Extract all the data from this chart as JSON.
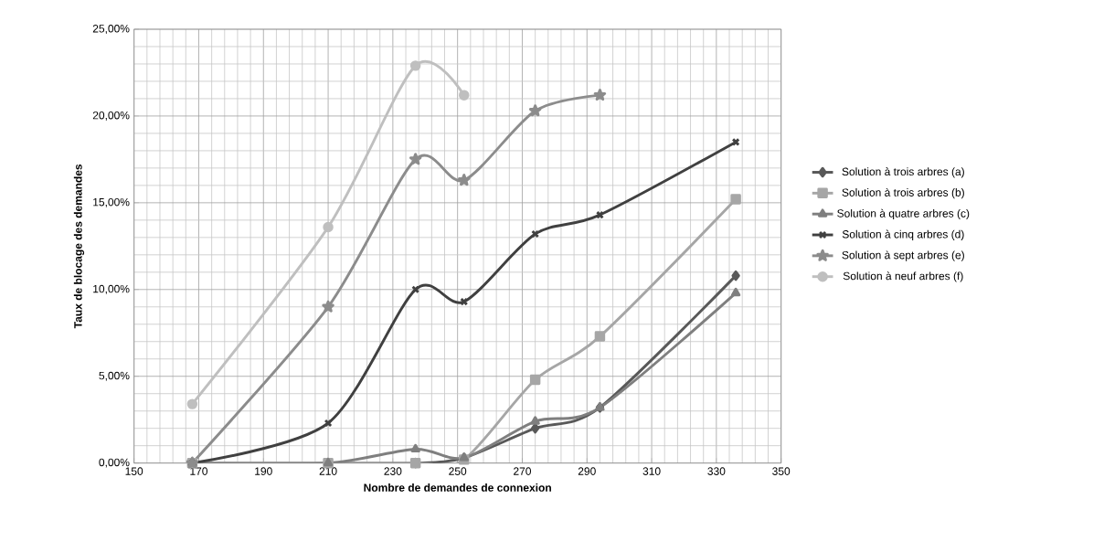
{
  "chart_data": {
    "type": "line",
    "xlabel": "Nombre de demandes de connexion",
    "ylabel": "Taux de blocage  des demandes",
    "x": [
      168,
      210,
      237,
      252,
      274,
      294,
      336
    ],
    "series": [
      {
        "name": "Solution à trois arbres (a)",
        "color": "#595959",
        "marker": "diamond",
        "values": [
          0,
          0,
          0,
          0.3,
          2.0,
          3.2,
          10.8
        ]
      },
      {
        "name": "Solution à trois arbres (b)",
        "color": "#a6a6a6",
        "marker": "square",
        "values": [
          0,
          0,
          0,
          0.2,
          4.8,
          7.3,
          15.2
        ]
      },
      {
        "name": "Solution à quatre arbres (c)",
        "color": "#7f7f7f",
        "marker": "triangle",
        "values": [
          0,
          0,
          0.8,
          0.3,
          2.4,
          3.2,
          9.8
        ]
      },
      {
        "name": "Solution à cinq arbres (d)",
        "color": "#404040",
        "marker": "cross",
        "values": [
          0,
          2.3,
          10.0,
          9.3,
          13.2,
          14.3,
          18.5
        ]
      },
      {
        "name": "Solution à sept arbres (e)",
        "color": "#8c8c8c",
        "marker": "star",
        "values": [
          0,
          9.0,
          17.5,
          16.3,
          20.3,
          21.2,
          null
        ]
      },
      {
        "name": "Solution à neuf arbres (f)",
        "color": "#bfbfbf",
        "marker": "circle",
        "values": [
          3.4,
          13.6,
          22.9,
          21.2,
          null,
          null,
          null
        ]
      }
    ],
    "xlim": [
      150,
      350
    ],
    "xticks": [
      150,
      170,
      190,
      210,
      230,
      250,
      270,
      290,
      310,
      330,
      350
    ],
    "ylim": [
      0,
      25
    ],
    "yticks": [
      {
        "value": 0,
        "label": "0,00%"
      },
      {
        "value": 5,
        "label": "5,00%"
      },
      {
        "value": 10,
        "label": "10,00%"
      },
      {
        "value": 15,
        "label": "15,00%"
      },
      {
        "value": 20,
        "label": "20,00%"
      },
      {
        "value": 25,
        "label": "25,00%"
      }
    ],
    "grid": true,
    "legend": "right",
    "line_style": "solid"
  }
}
